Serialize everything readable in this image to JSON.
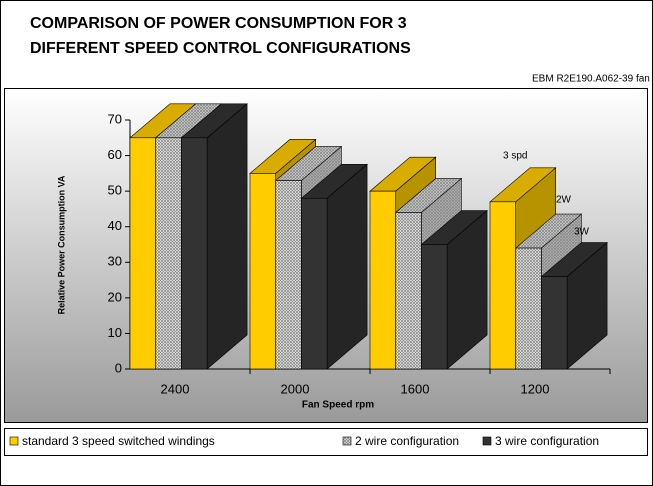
{
  "chart_data": {
    "type": "bar3d",
    "title": [
      "COMPARISON OF POWER CONSUMPTION FOR 3",
      "DIFFERENT SPEED CONTROL CONFIGURATIONS"
    ],
    "subtitle": "EBM R2E190.A062-39 fan",
    "x_label": "Fan Speed rpm",
    "y_label": "Relative Power Consumption VA",
    "categories": [
      "2400",
      "2000",
      "1600",
      "1200"
    ],
    "series": [
      {
        "name": "standard 3 speed switched windings",
        "color": "#ffcc00",
        "values": [
          65,
          55,
          50,
          47
        ]
      },
      {
        "name": "2 wire configuration",
        "color": "#888888",
        "pattern": "hatch",
        "values": [
          65,
          53,
          44,
          34
        ]
      },
      {
        "name": "3 wire configuration",
        "color": "#333333",
        "values": [
          65,
          48,
          35,
          26
        ]
      }
    ],
    "annotations": [
      "3 spd",
      "2W",
      "3W"
    ],
    "ylim": [
      0,
      70
    ],
    "yticks": [
      0,
      10,
      20,
      30,
      40,
      50,
      60,
      70
    ]
  }
}
